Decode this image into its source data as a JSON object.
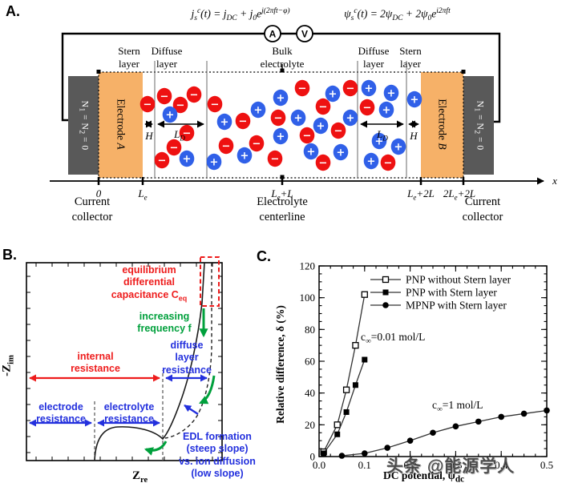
{
  "figure_labels": {
    "a": "A.",
    "b": "B.",
    "c": "C."
  },
  "watermark": "头条 @能源学人",
  "panelA": {
    "equations": {
      "current_html": "j<sub>s</sub><sup>c</sup>(t) = j<sub>DC</sub> + j<sub>0</sub>e<sup>j(2πft−φ)</sup>",
      "potential_html": "ψ<sub>s</sub><sup>c</sup>(t) = 2ψ<sub>DC</sub> + 2ψ<sub>0</sub>e<sup>i2πft</sup>"
    },
    "meters": {
      "ammeter": "A",
      "voltmeter": "V"
    },
    "layer_labels": {
      "stern_left_html": "Stern<br>layer",
      "diffuse_left_html": "Diffuse<br>layer",
      "bulk_html": "Bulk<br>electrolyte",
      "diffuse_right_html": "Diffuse<br>layer",
      "stern_right_html": "Stern<br>layer"
    },
    "electrodes": {
      "a_html": "Electrode <i>A</i>",
      "b_html": "Electrode <i>B</i>"
    },
    "collectors": {
      "left_html": "N<sub>1</sub> = N<sub>2</sub> = 0",
      "right_html": "N<sub>1</sub> = N<sub>2</sub> = 0"
    },
    "dimension_labels": {
      "h_html": "H",
      "ld_html": "L<sub>D</sub>"
    },
    "axis": {
      "tick0_html": "0",
      "tick1_html": "L<sub>e</sub>",
      "tick2_html": "L<sub>e</sub>+L",
      "tick3_html": "L<sub>e</sub>+2L",
      "tick4_html": "2L<sub>e</sub>+2L",
      "x_html": "x"
    },
    "captions": {
      "cc_left_html": "Current<br>collector",
      "center_html": "Electrolyte<br>centerline",
      "cc_right_html": "Current<br>collector"
    },
    "colors": {
      "anion": "#ee1111",
      "cation": "#3060e8",
      "electrode": "#f6b168",
      "collector": "#595959"
    },
    "ions": [
      [
        184,
        130,
        "-"
      ],
      [
        205,
        120,
        "-"
      ],
      [
        225,
        131,
        "-"
      ],
      [
        242,
        118,
        "-"
      ],
      [
        212,
        143,
        "+"
      ],
      [
        233,
        166,
        "-"
      ],
      [
        217,
        184,
        "-"
      ],
      [
        202,
        200,
        "-"
      ],
      [
        233,
        198,
        "+"
      ],
      [
        268,
        130,
        "-"
      ],
      [
        280,
        152,
        "+"
      ],
      [
        303,
        151,
        "-"
      ],
      [
        322,
        137,
        "+"
      ],
      [
        350,
        122,
        "+"
      ],
      [
        377,
        110,
        "-"
      ],
      [
        415,
        117,
        "+"
      ],
      [
        437,
        110,
        "-"
      ],
      [
        347,
        147,
        "-"
      ],
      [
        372,
        147,
        "+"
      ],
      [
        403,
        133,
        "-"
      ],
      [
        400,
        157,
        "+"
      ],
      [
        422,
        163,
        "-"
      ],
      [
        437,
        147,
        "+"
      ],
      [
        282,
        182,
        "-"
      ],
      [
        320,
        179,
        "-"
      ],
      [
        350,
        170,
        "+"
      ],
      [
        383,
        169,
        "-"
      ],
      [
        388,
        189,
        "+"
      ],
      [
        267,
        202,
        "+"
      ],
      [
        305,
        194,
        "+"
      ],
      [
        343,
        198,
        "-"
      ],
      [
        403,
        203,
        "-"
      ],
      [
        425,
        190,
        "+"
      ],
      [
        460,
        110,
        "+"
      ],
      [
        488,
        116,
        "+"
      ],
      [
        458,
        134,
        "-"
      ],
      [
        482,
        137,
        "+"
      ],
      [
        473,
        176,
        "+"
      ],
      [
        497,
        183,
        "+"
      ],
      [
        463,
        201,
        "+"
      ],
      [
        484,
        203,
        "-"
      ],
      [
        517,
        124,
        "+"
      ]
    ]
  },
  "panelB": {
    "ylabel_html": "-Z<sub>im</sub>",
    "xlabel_html": "Z<sub>re</sub>",
    "colors": {
      "red": "#ee1c1c",
      "green": "#00a03c",
      "blue": "#2330dd"
    },
    "annotations": {
      "capacitance_html": "equilibrium<br>differential<br>capacitance C<sub>eq</sub>",
      "frequency_html": "increasing<br>frequency f",
      "diffuse_html": "diffuse<br>layer<br>resistance",
      "internal_html": "internal<br>resistance",
      "electrode_html": "electrode<br>resistance",
      "electrolyte_html": "electrolyte<br>resistance",
      "edl_html": "EDL formation<br>(steep slope)<br>vs. ion diffusion<br>(low slope)"
    }
  },
  "panelC": {
    "ylabel_html": "Relative difference, δ (%)",
    "xlabel_html": "DC potential, ψ<sub>dc</sub>",
    "annotations": [
      {
        "html": "c<sub>∞</sub>=0.01 mol/L"
      },
      {
        "html": "c<sub>∞</sub>=1 mol/L"
      }
    ]
  },
  "chart_data": {
    "type": "line",
    "title": "",
    "xlabel": "DC potential, ψdc",
    "ylabel": "Relative difference, δ (%)",
    "xlim": [
      0,
      0.5
    ],
    "ylim": [
      0,
      120
    ],
    "xticks": [
      0,
      0.1,
      0.2,
      0.3,
      0.4,
      0.5
    ],
    "yticks": [
      0,
      20,
      40,
      60,
      80,
      100,
      120
    ],
    "x_minor_step": 0.025,
    "y_minor_step": 5,
    "grid": false,
    "legend_position": "top-left-inside",
    "series": [
      {
        "name": "PNP without Stern layer",
        "marker": "square-open",
        "x": [
          0.01,
          0.04,
          0.06,
          0.08,
          0.1
        ],
        "y": [
          3,
          20,
          42,
          70,
          102
        ]
      },
      {
        "name": "PNP with Stern layer",
        "marker": "square-filled",
        "x": [
          0.01,
          0.04,
          0.06,
          0.08,
          0.1
        ],
        "y": [
          2,
          14,
          28,
          45,
          61
        ]
      },
      {
        "name": "MPNP with Stern layer",
        "marker": "circle-filled",
        "x": [
          0.05,
          0.1,
          0.15,
          0.2,
          0.25,
          0.3,
          0.35,
          0.4,
          0.45,
          0.5
        ],
        "y": [
          0.5,
          2,
          5.5,
          10,
          15,
          19,
          22,
          25,
          27,
          29
        ]
      }
    ],
    "annotations": [
      {
        "text": "c∞=0.01 mol/L",
        "x": 0.1,
        "y": 72
      },
      {
        "text": "c∞=1 mol/L",
        "x": 0.27,
        "y": 32
      }
    ]
  }
}
